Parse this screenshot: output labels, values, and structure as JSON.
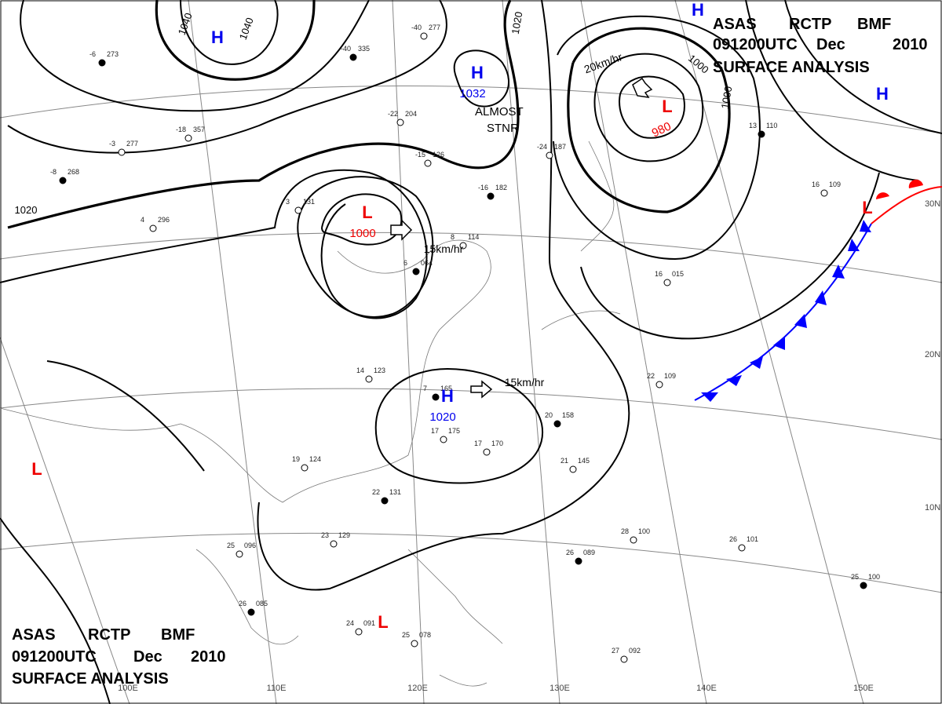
{
  "header_top": {
    "line1": [
      "ASAS",
      "RCTP",
      "BMF"
    ],
    "line2": [
      "091200UTC",
      "Dec",
      "2010"
    ],
    "line3": "SURFACE ANALYSIS"
  },
  "header_bottom": {
    "line1": [
      "ASAS",
      "RCTP",
      "BMF"
    ],
    "line2": [
      "091200UTC",
      "Dec",
      "2010"
    ],
    "line3": "SURFACE ANALYSIS"
  },
  "pressure_centers": [
    {
      "symbol": "H"
    },
    {
      "symbol": "H",
      "value": "1032"
    },
    {
      "symbol": "L",
      "value": "980"
    },
    {
      "symbol": "L",
      "value": "1000"
    },
    {
      "symbol": "H",
      "value": "1020"
    },
    {
      "symbol": "L"
    },
    {
      "symbol": "L"
    },
    {
      "symbol": "H"
    },
    {
      "symbol": "H"
    },
    {
      "symbol": "L"
    }
  ],
  "isobar_labels": [
    "1040",
    "1040",
    "1020",
    "1020",
    "1000",
    "1000"
  ],
  "motion_labels": [
    "20km/hr",
    "15km/hr",
    "15km/hr"
  ],
  "annotations": [
    "ALMOST",
    "STNR"
  ],
  "longitude_labels": [
    "100E",
    "110E",
    "120E",
    "130E",
    "140E",
    "150E"
  ],
  "latitude_labels": [
    "30N",
    "20N",
    "10N"
  ],
  "stations": [
    {
      "temp": "-6",
      "pressure": "273"
    },
    {
      "temp": "-3",
      "pressure": "277"
    },
    {
      "temp": "-18",
      "pressure": "357"
    },
    {
      "temp": "-8",
      "pressure": "268"
    },
    {
      "temp": "4",
      "pressure": "296"
    },
    {
      "temp": "-40",
      "pressure": "277"
    },
    {
      "temp": "-40",
      "pressure": "335"
    },
    {
      "temp": "-22",
      "pressure": "204"
    },
    {
      "temp": "-15",
      "pressure": "126"
    },
    {
      "temp": "-16",
      "pressure": "182"
    },
    {
      "temp": "-24",
      "pressure": "187"
    },
    {
      "temp": "3",
      "pressure": "131"
    },
    {
      "temp": "6",
      "pressure": "064"
    },
    {
      "temp": "8",
      "pressure": "114"
    },
    {
      "temp": "14",
      "pressure": "123"
    },
    {
      "temp": "7",
      "pressure": "165"
    },
    {
      "temp": "17",
      "pressure": "175"
    },
    {
      "temp": "17",
      "pressure": "170"
    },
    {
      "temp": "20",
      "pressure": "158"
    },
    {
      "temp": "21",
      "pressure": "145"
    },
    {
      "temp": "19",
      "pressure": "124"
    },
    {
      "temp": "22",
      "pressure": "131"
    },
    {
      "temp": "23",
      "pressure": "129"
    },
    {
      "temp": "25",
      "pressure": "096"
    },
    {
      "temp": "26",
      "pressure": "085"
    },
    {
      "temp": "24",
      "pressure": "091"
    },
    {
      "temp": "25",
      "pressure": "078"
    },
    {
      "temp": "26",
      "pressure": "089"
    },
    {
      "temp": "28",
      "pressure": "100"
    },
    {
      "temp": "26",
      "pressure": "101"
    },
    {
      "temp": "25",
      "pressure": "100"
    },
    {
      "temp": "22",
      "pressure": "109"
    },
    {
      "temp": "16",
      "pressure": "015"
    },
    {
      "temp": "13",
      "pressure": "110"
    },
    {
      "temp": "16",
      "pressure": "109"
    },
    {
      "temp": "27",
      "pressure": "092"
    }
  ]
}
